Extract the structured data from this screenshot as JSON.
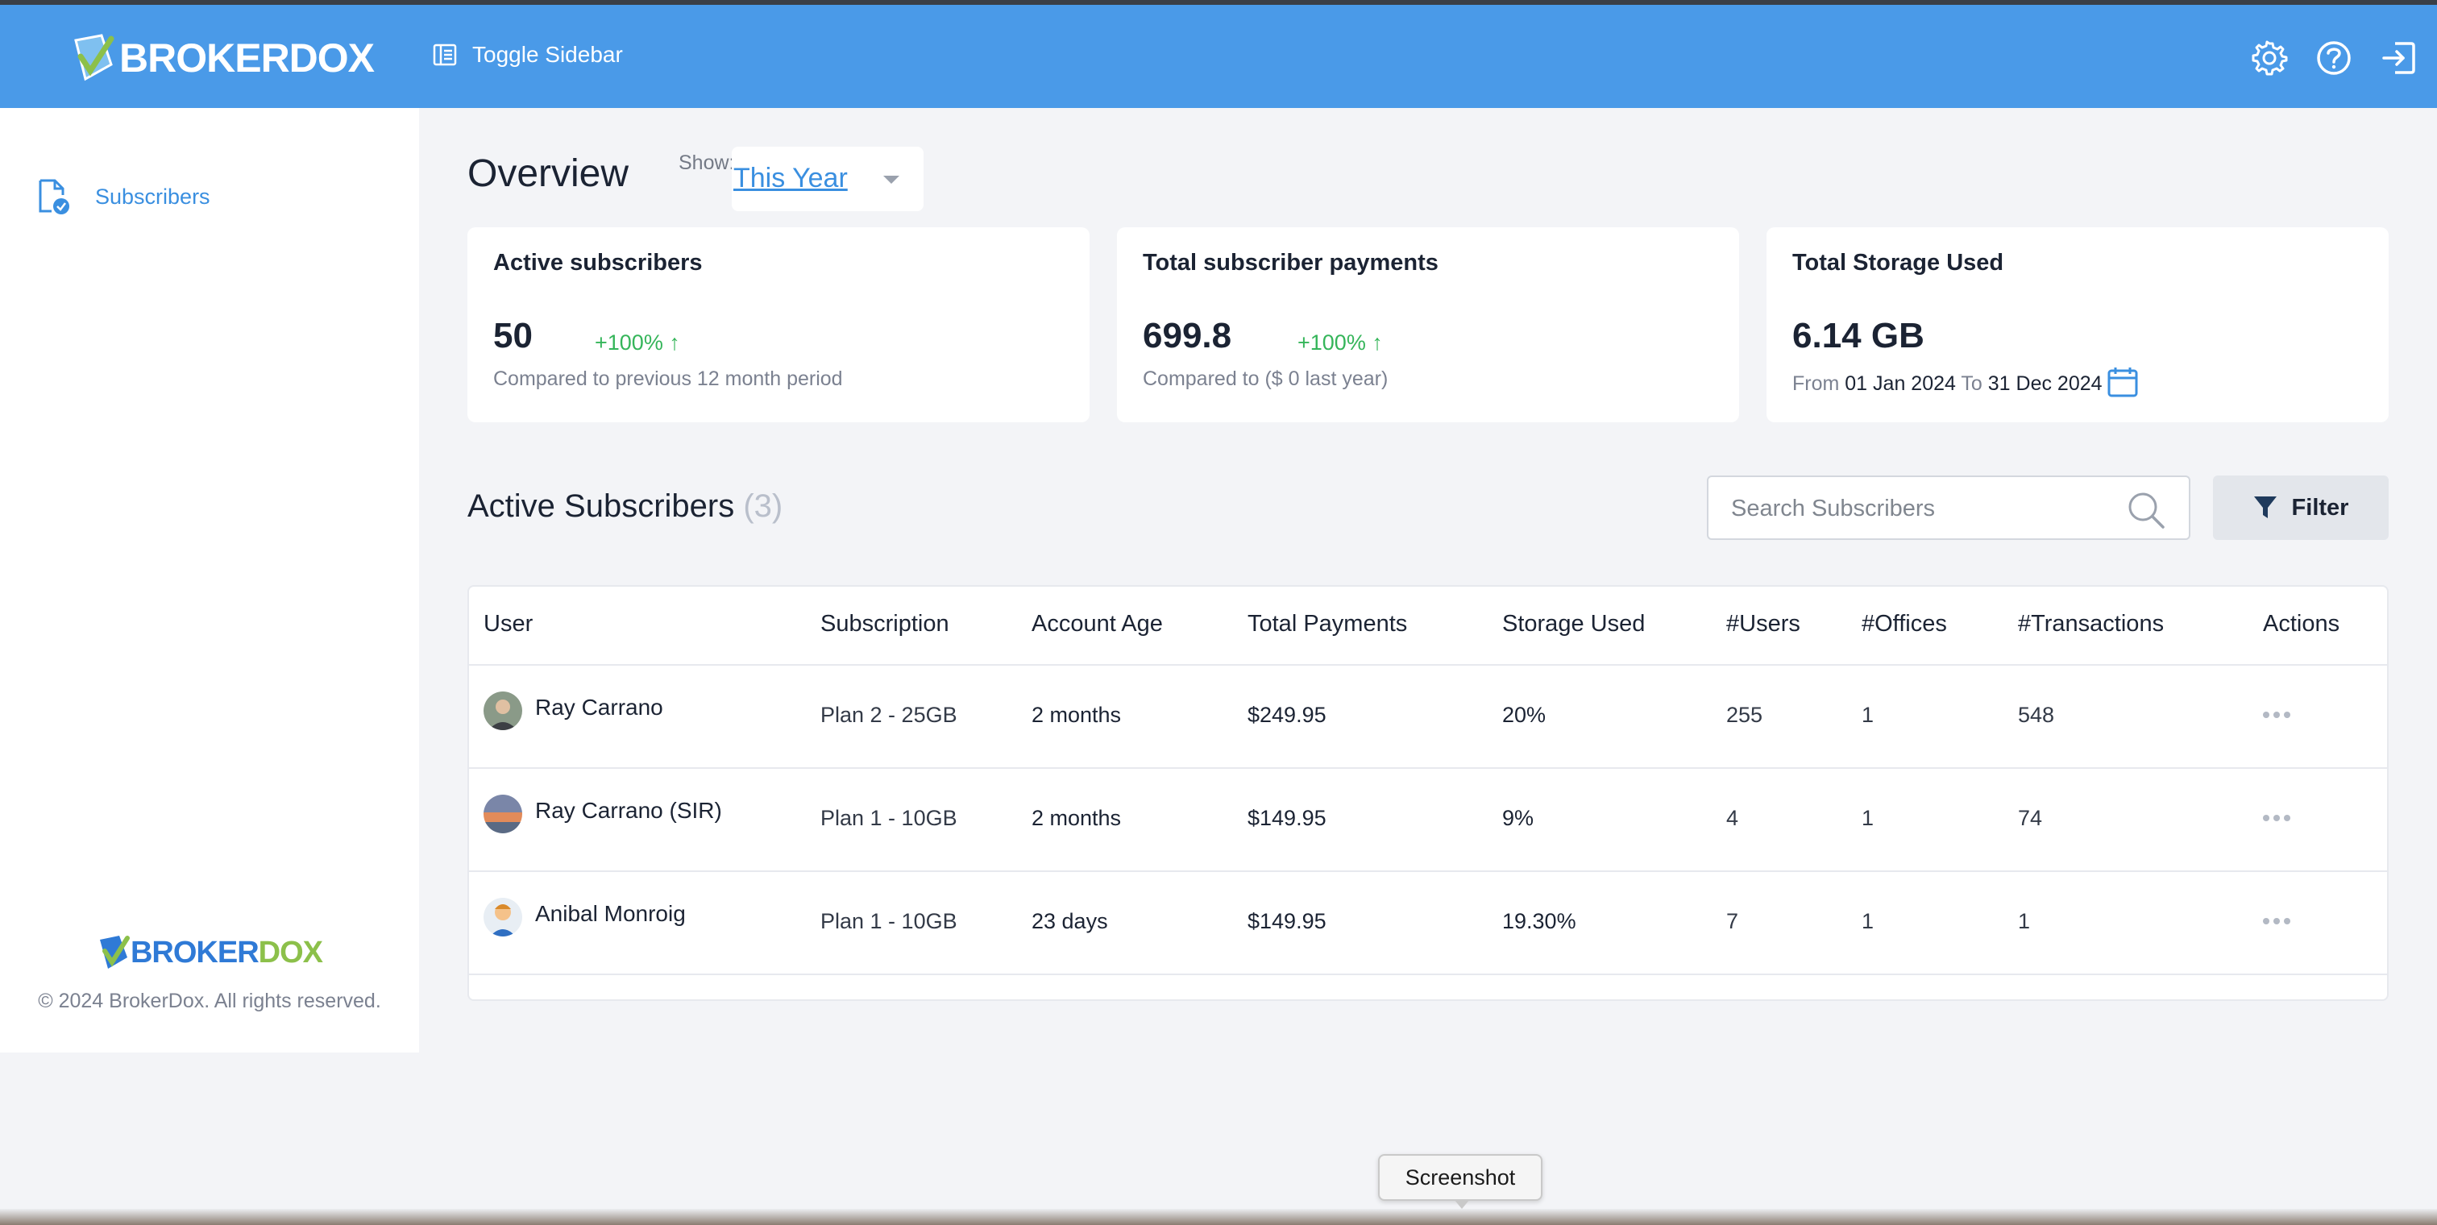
{
  "header": {
    "logo_text": "BROKERDOX",
    "toggle_label": "Toggle Sidebar",
    "icons": [
      "gear-icon",
      "help-icon",
      "logout-icon"
    ],
    "accent_color": "#4a9ae8"
  },
  "sidebar": {
    "items": [
      {
        "label": "Subscribers",
        "icon": "document-check-icon"
      }
    ],
    "footer_logo_a": "BROKER",
    "footer_logo_b": "DOX",
    "copyright": "© 2024 BrokerDox. All rights reserved."
  },
  "overview": {
    "title": "Overview",
    "show_label": "Show:",
    "period": "This Year"
  },
  "cards": [
    {
      "title": "Active subscribers",
      "value": "50",
      "change": "+100% ↑",
      "sub": "Compared to previous 12 month period"
    },
    {
      "title": "Total subscriber payments",
      "value": "699.8",
      "change": "+100% ↑",
      "sub": "Compared to ($ 0 last year)"
    },
    {
      "title": "Total Storage Used",
      "value": "6.14 GB",
      "from_label": "From",
      "from_date": "01 Jan 2024",
      "to_label": "To",
      "to_date": "31 Dec 2024"
    }
  ],
  "subscribers": {
    "title": "Active Subscribers",
    "count": "(3)",
    "search_placeholder": "Search Subscribers",
    "filter_label": "Filter",
    "columns": [
      "User",
      "Subscription",
      "Account Age",
      "Total Payments",
      "Storage Used",
      "#Users",
      "#Offices",
      "#Transactions",
      "Actions"
    ],
    "rows": [
      {
        "user": "Ray Carrano",
        "subscription": "Plan 2 - 25GB",
        "age": "2 months",
        "payments": "$249.95",
        "storage": "20%",
        "users": "255",
        "offices": "1",
        "transactions": "548"
      },
      {
        "user": "Ray Carrano (SIR)",
        "subscription": "Plan 1 - 10GB",
        "age": "2 months",
        "payments": "$149.95",
        "storage": "9%",
        "users": "4",
        "offices": "1",
        "transactions": "74"
      },
      {
        "user": "Anibal Monroig",
        "subscription": "Plan 1 - 10GB",
        "age": "23 days",
        "payments": "$149.95",
        "storage": "19.30%",
        "users": "7",
        "offices": "1",
        "transactions": "1"
      }
    ]
  },
  "tooltip": "Screenshot"
}
